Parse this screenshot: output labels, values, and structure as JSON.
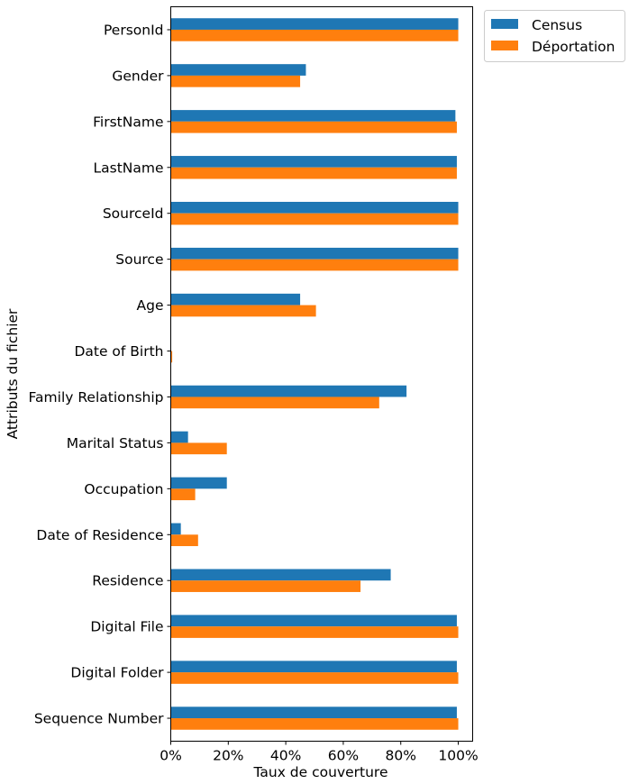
{
  "chart_data": {
    "type": "bar",
    "orientation": "horizontal",
    "xlabel": "Taux de couverture",
    "ylabel": "Attributs du fichier",
    "xlim": [
      0,
      1.05
    ],
    "xticks": [
      0,
      0.2,
      0.4,
      0.6,
      0.8,
      1.0
    ],
    "xtick_labels": [
      "0%",
      "20%",
      "40%",
      "60%",
      "80%",
      "100%"
    ],
    "grid": false,
    "legend_position": "outside-top-right",
    "categories": [
      "PersonId",
      "Gender",
      "FirstName",
      "LastName",
      "SourceId",
      "Source",
      "Age",
      "Date of Birth",
      "Family Relationship",
      "Marital Status",
      "Occupation",
      "Date of Residence",
      "Residence",
      "Digital File",
      "Digital Folder",
      "Sequence Number"
    ],
    "series": [
      {
        "name": "Census",
        "color": "#1f77b4",
        "values": [
          1.0,
          0.47,
          0.99,
          0.995,
          1.0,
          1.0,
          0.45,
          0.0,
          0.82,
          0.06,
          0.195,
          0.035,
          0.765,
          0.995,
          0.995,
          0.995
        ]
      },
      {
        "name": "Déportation",
        "color": "#ff7f0e",
        "values": [
          1.0,
          0.45,
          0.995,
          0.995,
          1.0,
          1.0,
          0.505,
          0.005,
          0.725,
          0.195,
          0.085,
          0.095,
          0.66,
          1.0,
          1.0,
          1.0
        ]
      }
    ]
  }
}
